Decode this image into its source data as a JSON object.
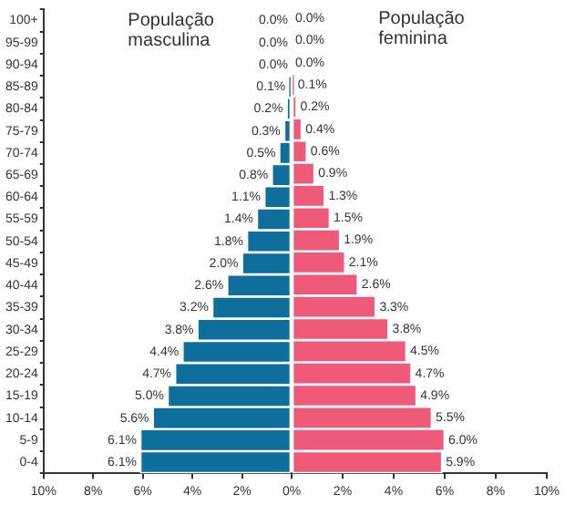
{
  "chart_data": [
    {
      "type": "bar",
      "orientation": "horizontal",
      "categories": [
        "100+",
        "95-99",
        "90-94",
        "85-89",
        "80-84",
        "75-79",
        "70-74",
        "65-69",
        "60-64",
        "55-59",
        "50-54",
        "45-49",
        "40-44",
        "35-39",
        "30-34",
        "25-29",
        "20-24",
        "15-19",
        "10-14",
        "5-9",
        "0-4"
      ],
      "series": [
        {
          "name": "População masculina",
          "color": "#0e6e9c",
          "values": [
            0.0,
            0.0,
            0.0,
            0.1,
            0.2,
            0.3,
            0.5,
            0.8,
            1.1,
            1.4,
            1.8,
            2.0,
            2.6,
            3.2,
            3.8,
            4.4,
            4.7,
            5.0,
            5.6,
            6.1,
            6.1
          ],
          "value_labels": [
            "0.0%",
            "0.0%",
            "0.0%",
            "0.1%",
            "0.2%",
            "0.3%",
            "0.5%",
            "0.8%",
            "1.1%",
            "1.4%",
            "1.8%",
            "2.0%",
            "2.6%",
            "3.2%",
            "3.8%",
            "4.4%",
            "4.7%",
            "5.0%",
            "5.6%",
            "6.1%",
            "6.1%"
          ]
        }
      ],
      "xlim": [
        10,
        0
      ],
      "xticks": [
        {
          "value": 10,
          "label": "10%"
        },
        {
          "value": 8,
          "label": "8%"
        },
        {
          "value": 6,
          "label": "6%"
        },
        {
          "value": 4,
          "label": "4%"
        },
        {
          "value": 2,
          "label": "2%"
        },
        {
          "value": 0,
          "label": "0%"
        }
      ]
    },
    {
      "type": "bar",
      "orientation": "horizontal",
      "tick_labels": "x",
      "categories": [
        null,
        null,
        null,
        null,
        null,
        null,
        null,
        null,
        null,
        null,
        null,
        null,
        null,
        null,
        null,
        null,
        null,
        null,
        null,
        null,
        null
      ],
      "series": [
        {
          "name": "População feminina",
          "color": "#ee5a78",
          "values": [
            0.0,
            0.0,
            0.0,
            0.1,
            0.2,
            0.4,
            0.6,
            0.9,
            1.3,
            1.5,
            1.9,
            2.1,
            2.6,
            3.3,
            3.8,
            4.5,
            4.7,
            4.9,
            5.5,
            6.0,
            5.9
          ],
          "value_labels": [
            "0.0%",
            "0.0%",
            "0.0%",
            "0.1%",
            "0.2%",
            "0.4%",
            "0.6%",
            "0.9%",
            "1.3%",
            "1.5%",
            "1.9%",
            "2.1%",
            "2.6%",
            "3.3%",
            "3.8%",
            "4.5%",
            "4.7%",
            "4.9%",
            "5.5%",
            "6.0%",
            "5.9%"
          ]
        }
      ],
      "xlim": [
        0,
        10
      ],
      "xticks": [
        {
          "value": 0,
          "label": null
        },
        {
          "value": 2,
          "label": "2%"
        },
        {
          "value": 4,
          "label": "4%"
        },
        {
          "value": 6,
          "label": "6%"
        },
        {
          "value": 8,
          "label": "8%"
        },
        {
          "value": 10,
          "label": "10%"
        }
      ]
    }
  ]
}
